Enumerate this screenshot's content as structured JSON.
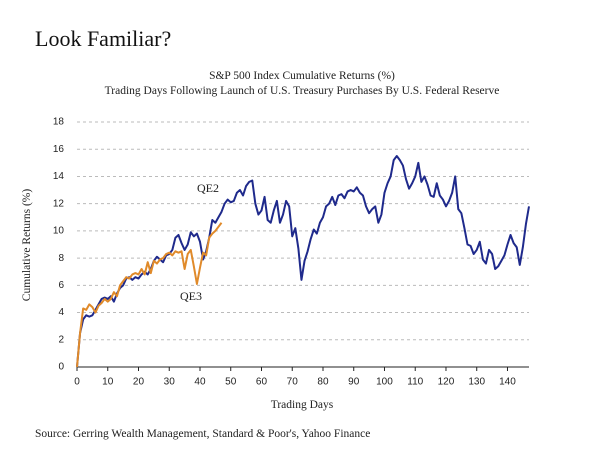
{
  "heading": "Look Familiar?",
  "source": "Source: Gerring Wealth Management, Standard & Poor's, Yahoo Finance",
  "chart_data": {
    "type": "line",
    "title": "S&P 500 Index Cumulative Returns (%)",
    "subtitle": "Trading Days Following Launch of U.S. Treasury Purchases By U.S. Federal Reserve",
    "x_label": "Trading Days",
    "y_label": "Cumulative Returns (%)",
    "annotations": [
      "QE2",
      "QE3"
    ],
    "xlim": [
      0,
      147
    ],
    "ylim": [
      0,
      18
    ],
    "xticks": [
      0,
      10,
      20,
      30,
      40,
      50,
      60,
      70,
      80,
      90,
      100,
      110,
      120,
      130,
      140
    ],
    "yticks": [
      0,
      2,
      4,
      6,
      8,
      10,
      12,
      14,
      16,
      18
    ],
    "grid": true,
    "series": [
      {
        "name": "QE2",
        "color": "#1f2a8c",
        "x": [
          0,
          1,
          2,
          3,
          4,
          5,
          6,
          7,
          8,
          9,
          10,
          11,
          12,
          13,
          14,
          15,
          16,
          17,
          18,
          19,
          20,
          21,
          22,
          23,
          24,
          25,
          26,
          27,
          28,
          29,
          30,
          31,
          32,
          33,
          34,
          35,
          36,
          37,
          38,
          39,
          40,
          41,
          42,
          43,
          44,
          45,
          46,
          47,
          48,
          49,
          50,
          51,
          52,
          53,
          54,
          55,
          56,
          57,
          58,
          59,
          60,
          61,
          62,
          63,
          64,
          65,
          66,
          67,
          68,
          69,
          70,
          71,
          72,
          73,
          74,
          75,
          76,
          77,
          78,
          79,
          80,
          81,
          82,
          83,
          84,
          85,
          86,
          87,
          88,
          89,
          90,
          91,
          92,
          93,
          94,
          95,
          96,
          97,
          98,
          99,
          100,
          101,
          102,
          103,
          104,
          105,
          106,
          107,
          108,
          109,
          110,
          111,
          112,
          113,
          114,
          115,
          116,
          117,
          118,
          119,
          120,
          121,
          122,
          123,
          124,
          125,
          126,
          127,
          128,
          129,
          130,
          131,
          132,
          133,
          134,
          135,
          136,
          137,
          138,
          139,
          140,
          141,
          142,
          143,
          144,
          145,
          146,
          147
        ],
        "values": [
          0,
          2.5,
          3.5,
          3.8,
          3.7,
          3.8,
          4.2,
          4.6,
          5.0,
          5.1,
          5.0,
          5.2,
          4.8,
          5.4,
          5.8,
          6.0,
          6.5,
          6.6,
          6.4,
          6.6,
          6.5,
          6.8,
          7.0,
          6.8,
          7.2,
          7.8,
          8.1,
          7.9,
          7.7,
          8.2,
          8.3,
          8.6,
          9.5,
          9.7,
          9.1,
          8.6,
          9.0,
          9.9,
          9.6,
          9.8,
          9.2,
          7.9,
          8.5,
          9.5,
          10.8,
          10.6,
          11.0,
          11.4,
          12.0,
          12.3,
          12.1,
          12.2,
          12.8,
          13.0,
          12.6,
          13.3,
          13.6,
          13.7,
          12.0,
          11.2,
          11.5,
          12.5,
          10.8,
          10.6,
          11.5,
          12.2,
          10.6,
          11.2,
          12.2,
          11.8,
          9.6,
          10.2,
          8.7,
          6.4,
          7.8,
          8.5,
          9.4,
          10.1,
          9.8,
          10.6,
          11.0,
          11.8,
          12.0,
          12.5,
          11.9,
          12.6,
          12.7,
          12.4,
          12.9,
          13.0,
          12.9,
          13.2,
          12.8,
          12.6,
          11.8,
          11.3,
          11.6,
          11.8,
          10.6,
          11.2,
          12.8,
          13.5,
          14.0,
          15.2,
          15.5,
          15.2,
          14.8,
          13.8,
          13.1,
          13.5,
          14.0,
          15.0,
          13.6,
          14.0,
          13.4,
          12.6,
          12.5,
          13.5,
          12.6,
          12.3,
          11.8,
          12.2,
          12.8,
          14.0,
          11.6,
          11.3,
          10.2,
          9.0,
          8.9,
          8.3,
          8.6,
          9.2,
          7.9,
          7.6,
          8.6,
          8.3,
          7.2,
          7.4,
          7.8,
          8.2,
          9.0,
          9.7,
          9.1,
          8.8,
          7.5,
          8.8,
          10.5,
          11.8
        ]
      },
      {
        "name": "QE3",
        "color": "#e08a2a",
        "x": [
          0,
          1,
          2,
          3,
          4,
          5,
          6,
          7,
          8,
          9,
          10,
          11,
          12,
          13,
          14,
          15,
          16,
          17,
          18,
          19,
          20,
          21,
          22,
          23,
          24,
          25,
          26,
          27,
          28,
          29,
          30,
          31,
          32,
          33,
          34,
          35,
          36,
          37,
          38,
          39,
          40,
          41,
          42,
          43,
          44,
          45,
          46,
          47
        ],
        "values": [
          0,
          2.5,
          4.3,
          4.2,
          4.6,
          4.4,
          4.0,
          4.5,
          4.7,
          5.0,
          4.8,
          5.0,
          5.5,
          5.2,
          6.0,
          6.3,
          6.6,
          6.5,
          6.8,
          6.9,
          6.8,
          7.2,
          6.8,
          7.7,
          6.9,
          7.8,
          7.6,
          7.9,
          8.0,
          8.3,
          8.4,
          8.2,
          8.5,
          8.4,
          8.5,
          7.2,
          8.3,
          8.6,
          7.4,
          6.1,
          7.3,
          8.4,
          8.2,
          9.5,
          9.8,
          10.0,
          10.3,
          10.6
        ]
      }
    ]
  }
}
